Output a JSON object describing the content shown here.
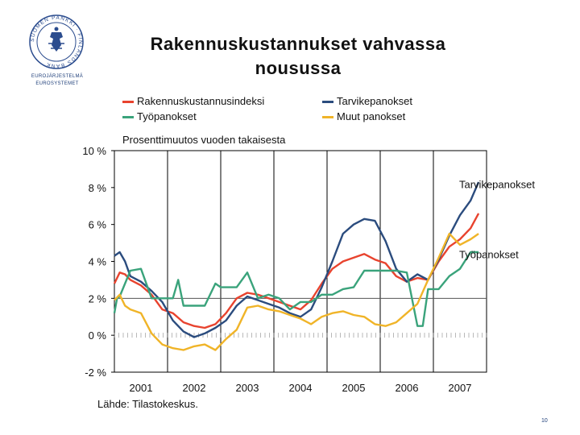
{
  "logo": {
    "circle_text": "SUOMEN PANKKI · FINLANDS BANK",
    "line1": "EUROJÄRJESTELMÄ",
    "line2": "EUROSYSTEMET"
  },
  "title": {
    "line1": "Rakennuskustannukset vahvassa",
    "line2": "nousussa"
  },
  "legend": [
    {
      "label": "Rakennuskustannusindeksi",
      "color": "#e8432e"
    },
    {
      "label": "Tarvikepanokset",
      "color": "#2b4c7e"
    },
    {
      "label": "Työpanokset",
      "color": "#3aa37b"
    },
    {
      "label": "Muut panokset",
      "color": "#f0b428"
    }
  ],
  "source": "Lähde: Tilastokeskus.",
  "page_number": "10",
  "chart_data": {
    "type": "line",
    "subtitle": "Prosenttimuutos vuoden takaisesta",
    "ylim": [
      -2,
      10
    ],
    "yticks": [
      -2,
      0,
      2,
      4,
      6,
      8,
      10
    ],
    "ytick_labels": [
      "-2 %",
      "0 %",
      "2 %",
      "4 %",
      "6 %",
      "8 %",
      "10 %"
    ],
    "xlim": [
      2000.5,
      2007.5
    ],
    "xticks": [
      2001,
      2002,
      2003,
      2004,
      2005,
      2006,
      2007
    ],
    "xtick_labels": [
      "2001",
      "2002",
      "2003",
      "2004",
      "2005",
      "2006",
      "2007"
    ],
    "year_dividers": [
      2001.5,
      2002.5,
      2003.5,
      2004.5,
      2005.5,
      2006.5
    ],
    "reference_line": 2,
    "annotations": [
      {
        "text": "Tarvikepanokset",
        "x": 2007.42,
        "y": 8.2
      },
      {
        "text": "Työpanokset",
        "x": 2007.42,
        "y": 4.4
      }
    ],
    "series": [
      {
        "name": "Rakennuskustannusindeksi",
        "color": "#e8432e",
        "x": [
          2000.5,
          2000.6,
          2000.7,
          2000.8,
          2001.0,
          2001.2,
          2001.4,
          2001.6,
          2001.8,
          2002.0,
          2002.2,
          2002.4,
          2002.6,
          2002.8,
          2003.0,
          2003.2,
          2003.4,
          2003.6,
          2003.8,
          2004.0,
          2004.2,
          2004.4,
          2004.6,
          2004.8,
          2005.0,
          2005.2,
          2005.4,
          2005.6,
          2005.8,
          2006.0,
          2006.2,
          2006.4,
          2006.6,
          2006.8,
          2007.0,
          2007.2,
          2007.35
        ],
        "y": [
          2.8,
          3.4,
          3.3,
          3.0,
          2.7,
          2.2,
          1.4,
          1.2,
          0.7,
          0.5,
          0.4,
          0.6,
          1.2,
          2.0,
          2.3,
          2.2,
          2.0,
          1.8,
          1.6,
          1.4,
          1.9,
          2.8,
          3.6,
          4.0,
          4.2,
          4.4,
          4.1,
          3.9,
          3.2,
          2.9,
          3.1,
          3.0,
          4.0,
          4.8,
          5.2,
          5.8,
          6.6
        ]
      },
      {
        "name": "Tarvikepanokset",
        "color": "#2b4c7e",
        "x": [
          2000.5,
          2000.6,
          2000.7,
          2000.8,
          2001.0,
          2001.2,
          2001.4,
          2001.6,
          2001.8,
          2002.0,
          2002.2,
          2002.4,
          2002.6,
          2002.8,
          2003.0,
          2003.2,
          2003.4,
          2003.6,
          2003.8,
          2004.0,
          2004.2,
          2004.4,
          2004.6,
          2004.8,
          2005.0,
          2005.2,
          2005.4,
          2005.6,
          2005.8,
          2006.0,
          2006.2,
          2006.4,
          2006.6,
          2006.8,
          2007.0,
          2007.2,
          2007.35
        ],
        "y": [
          4.3,
          4.5,
          4.0,
          3.2,
          2.9,
          2.4,
          1.8,
          0.8,
          0.2,
          -0.1,
          0.1,
          0.4,
          0.8,
          1.6,
          2.1,
          1.9,
          1.7,
          1.5,
          1.2,
          1.0,
          1.4,
          2.6,
          4.0,
          5.5,
          6.0,
          6.3,
          6.2,
          5.1,
          3.6,
          2.9,
          3.3,
          3.0,
          4.1,
          5.4,
          6.5,
          7.3,
          8.3
        ]
      },
      {
        "name": "Työpanokset",
        "color": "#3aa37b",
        "x": [
          2000.5,
          2000.55,
          2000.6,
          2000.8,
          2001.0,
          2001.2,
          2001.4,
          2001.6,
          2001.7,
          2001.8,
          2002.0,
          2002.2,
          2002.4,
          2002.5,
          2002.6,
          2002.8,
          2003.0,
          2003.2,
          2003.4,
          2003.6,
          2003.8,
          2004.0,
          2004.2,
          2004.4,
          2004.6,
          2004.8,
          2005.0,
          2005.2,
          2005.4,
          2005.5,
          2005.6,
          2005.8,
          2006.0,
          2006.2,
          2006.3,
          2006.4,
          2006.6,
          2006.8,
          2007.0,
          2007.2,
          2007.35
        ],
        "y": [
          1.2,
          2.0,
          2.1,
          3.5,
          3.6,
          2.0,
          2.0,
          2.0,
          3.0,
          1.6,
          1.6,
          1.6,
          2.8,
          2.6,
          2.6,
          2.6,
          3.4,
          2.0,
          2.2,
          2.0,
          1.4,
          1.8,
          1.8,
          2.2,
          2.2,
          2.5,
          2.6,
          3.5,
          3.5,
          3.5,
          3.5,
          3.5,
          3.4,
          0.5,
          0.5,
          2.5,
          2.5,
          3.2,
          3.6,
          4.5,
          4.5
        ]
      },
      {
        "name": "Muut panokset",
        "color": "#f0b428",
        "x": [
          2000.5,
          2000.6,
          2000.7,
          2000.8,
          2001.0,
          2001.2,
          2001.4,
          2001.6,
          2001.8,
          2002.0,
          2002.2,
          2002.4,
          2002.6,
          2002.8,
          2003.0,
          2003.2,
          2003.4,
          2003.6,
          2003.8,
          2004.0,
          2004.2,
          2004.4,
          2004.6,
          2004.8,
          2005.0,
          2005.2,
          2005.4,
          2005.6,
          2005.8,
          2006.0,
          2006.2,
          2006.4,
          2006.6,
          2006.8,
          2007.0,
          2007.2,
          2007.35
        ],
        "y": [
          1.9,
          2.2,
          1.6,
          1.4,
          1.2,
          0.1,
          -0.5,
          -0.7,
          -0.8,
          -0.6,
          -0.5,
          -0.8,
          -0.2,
          0.3,
          1.5,
          1.6,
          1.4,
          1.3,
          1.1,
          0.9,
          0.6,
          1.0,
          1.2,
          1.3,
          1.1,
          1.0,
          0.6,
          0.5,
          0.7,
          1.2,
          1.7,
          3.0,
          4.2,
          5.5,
          4.9,
          5.2,
          5.5
        ]
      }
    ]
  }
}
